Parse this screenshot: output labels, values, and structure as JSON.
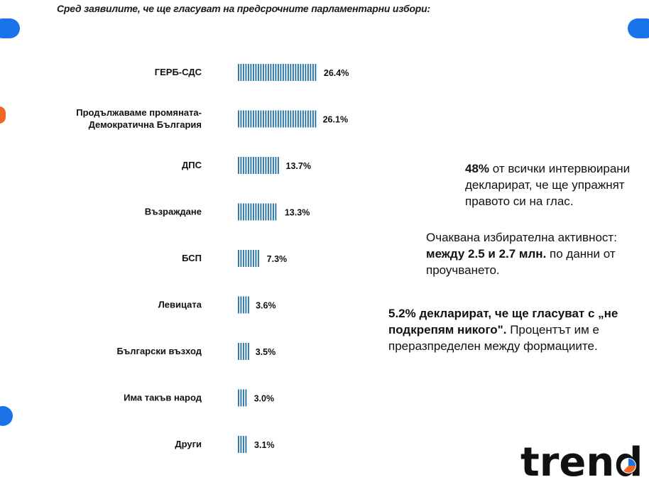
{
  "title": "Сред заявилите, че ще гласуват на  предсрочните парламентарни избори:",
  "colors": {
    "bar": "#1f6fa3",
    "accent_blue": "#1a73e8",
    "accent_orange": "#f26522"
  },
  "chart_data": {
    "type": "bar",
    "orientation": "horizontal",
    "categories": [
      "ГЕРБ-СДС",
      "Продължаваме промяната-\nДемократична България",
      "ДПС",
      "Възраждане",
      "БСП",
      "Левицата",
      "Български възход",
      "Има такъв народ",
      "Други"
    ],
    "values": [
      26.4,
      26.1,
      13.7,
      13.3,
      7.3,
      3.6,
      3.5,
      3.0,
      3.1
    ],
    "value_labels": [
      "26.4%",
      "26.1%",
      "13.7%",
      "13.3%",
      "7.3%",
      "3.6%",
      "3.5%",
      "3.0%",
      "3.1%"
    ],
    "title": "Сред заявилите, че ще гласуват на  предсрочните парламентарни избори:",
    "xlabel": "",
    "ylabel": "",
    "grid": false
  },
  "notes": {
    "note1": {
      "bold": "48%",
      "text": " от всички интервюирани декларират, че ще упражнят правото си на глас."
    },
    "note2": {
      "text1": "Очаквана избирателна активност: ",
      "bold": "между 2.5 и 2.7 млн.",
      "text2": " по данни от проучването."
    },
    "note3": {
      "bold": "5.2% декларират, че ще гласуват с „не подкрепям никого\".",
      "text": " Процентът им е преразпределен между формациите."
    }
  },
  "logo": {
    "text": "trend",
    "icon": "pie-chart-icon"
  }
}
